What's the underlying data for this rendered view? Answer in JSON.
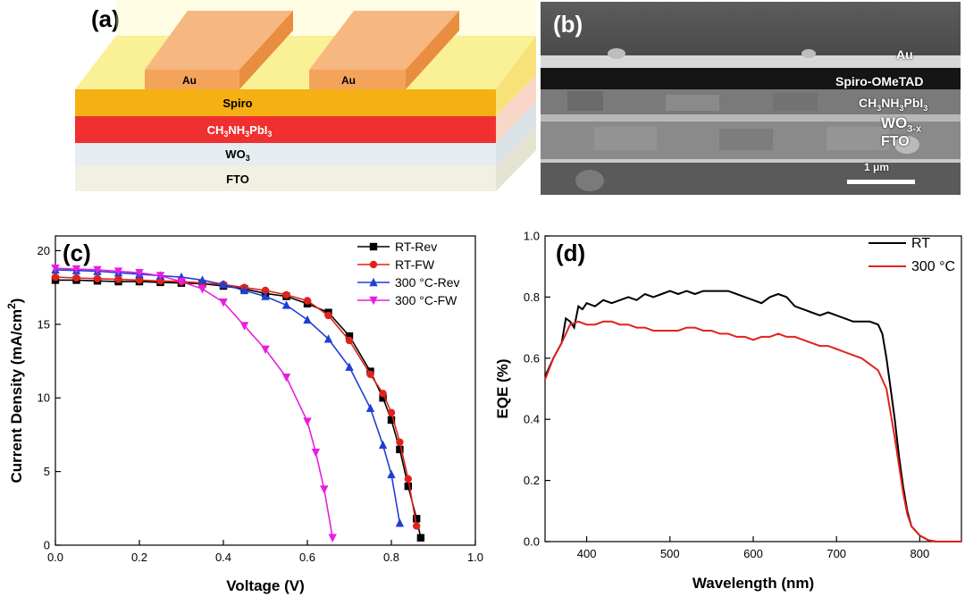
{
  "panel_a": {
    "label": "(a)",
    "layers": {
      "au_left": "Au",
      "au_right": "Au",
      "spiro": "Spiro",
      "perovskite": {
        "main": "CH",
        "s1": "3",
        "mid": "NH",
        "s2": "3",
        "tail": "PbI",
        "s3": "3"
      },
      "wo3": {
        "main": "WO",
        "sub": "3"
      },
      "fto": "FTO"
    },
    "colors": {
      "fto": "#f2f0e2",
      "wo3": "#e6edf0",
      "perovskite": "#f03030",
      "spiro": "#f5b013",
      "au": "#f4a45a",
      "top": "#f7ea70"
    }
  },
  "panel_b": {
    "label": "(b)",
    "layers": {
      "au": "Au",
      "spiro": "Spiro-OMeTAD",
      "perovskite": {
        "main": "CH",
        "s1": "3",
        "mid": "NH",
        "s2": "3",
        "tail": "PbI",
        "s3": "3"
      },
      "wo": {
        "main": "WO",
        "sub": "3-x"
      },
      "fto": "FTO"
    },
    "scale_bar": "1 μm"
  },
  "chart_data": [
    {
      "type": "line",
      "panel": "(c)",
      "xlabel": "Voltage (V)",
      "ylabel": {
        "main": "Current Density (mA/cm",
        "sup": "2",
        "tail": ")"
      },
      "xlim": [
        0.0,
        1.0
      ],
      "ylim": [
        0,
        21
      ],
      "xticks": [
        "0.0",
        "0.2",
        "0.4",
        "0.6",
        "0.8",
        "1.0"
      ],
      "yticks": [
        "0",
        "5",
        "10",
        "15",
        "20"
      ],
      "legend_position": "top-right",
      "series": [
        {
          "name": "RT-Rev",
          "color": "#000000",
          "marker": "square",
          "x": [
            0.0,
            0.05,
            0.1,
            0.15,
            0.2,
            0.25,
            0.3,
            0.35,
            0.4,
            0.45,
            0.5,
            0.55,
            0.6,
            0.65,
            0.7,
            0.75,
            0.78,
            0.8,
            0.82,
            0.84,
            0.86,
            0.87
          ],
          "y": [
            18.0,
            18.0,
            17.95,
            17.9,
            17.9,
            17.85,
            17.8,
            17.75,
            17.6,
            17.4,
            17.1,
            16.9,
            16.4,
            15.8,
            14.2,
            11.8,
            10.0,
            8.5,
            6.5,
            4.0,
            1.8,
            0.5
          ]
        },
        {
          "name": "RT-FW",
          "color": "#e0221c",
          "marker": "circle",
          "x": [
            0.0,
            0.05,
            0.1,
            0.15,
            0.2,
            0.25,
            0.3,
            0.35,
            0.4,
            0.45,
            0.5,
            0.55,
            0.6,
            0.65,
            0.7,
            0.75,
            0.78,
            0.8,
            0.82,
            0.84,
            0.86
          ],
          "y": [
            18.2,
            18.15,
            18.1,
            18.05,
            18.0,
            17.95,
            17.9,
            17.8,
            17.7,
            17.5,
            17.3,
            17.0,
            16.6,
            15.6,
            13.9,
            11.6,
            10.3,
            9.0,
            7.0,
            4.5,
            1.3
          ]
        },
        {
          "name": "300 °C-Rev",
          "color": "#1f3fd4",
          "marker": "triangle-up",
          "x": [
            0.0,
            0.05,
            0.1,
            0.15,
            0.2,
            0.25,
            0.3,
            0.35,
            0.4,
            0.45,
            0.5,
            0.55,
            0.6,
            0.65,
            0.7,
            0.75,
            0.78,
            0.8,
            0.82
          ],
          "y": [
            18.7,
            18.65,
            18.6,
            18.5,
            18.4,
            18.3,
            18.2,
            18.0,
            17.7,
            17.3,
            16.9,
            16.3,
            15.3,
            14.0,
            12.1,
            9.3,
            6.8,
            4.8,
            1.5
          ]
        },
        {
          "name": "300 °C-FW",
          "color": "#e81ee0",
          "marker": "triangle-down",
          "x": [
            0.0,
            0.05,
            0.1,
            0.15,
            0.2,
            0.25,
            0.3,
            0.35,
            0.4,
            0.45,
            0.5,
            0.55,
            0.6,
            0.62,
            0.64,
            0.66
          ],
          "y": [
            18.8,
            18.75,
            18.7,
            18.6,
            18.5,
            18.3,
            17.9,
            17.4,
            16.5,
            14.9,
            13.3,
            11.4,
            8.4,
            6.3,
            3.8,
            0.5
          ]
        }
      ]
    },
    {
      "type": "line",
      "panel": "(d)",
      "xlabel": "Wavelength (nm)",
      "ylabel": "EQE (%)",
      "xlim": [
        350,
        850
      ],
      "ylim": [
        0.0,
        1.0
      ],
      "xticks": [
        "400",
        "500",
        "600",
        "700",
        "800"
      ],
      "yticks": [
        "0.0",
        "0.2",
        "0.4",
        "0.6",
        "0.8",
        "1.0"
      ],
      "legend_position": "top-right",
      "series": [
        {
          "name": "RT",
          "color": "#000000",
          "x": [
            350,
            360,
            370,
            375,
            380,
            385,
            390,
            395,
            400,
            410,
            420,
            430,
            440,
            450,
            460,
            470,
            480,
            490,
            500,
            510,
            520,
            530,
            540,
            550,
            560,
            570,
            580,
            590,
            600,
            610,
            620,
            630,
            640,
            650,
            660,
            670,
            680,
            690,
            700,
            710,
            720,
            730,
            740,
            750,
            755,
            760,
            765,
            770,
            775,
            780,
            785,
            790,
            800,
            810,
            820,
            830,
            850
          ],
          "y": [
            0.54,
            0.6,
            0.65,
            0.73,
            0.72,
            0.7,
            0.77,
            0.76,
            0.78,
            0.77,
            0.79,
            0.78,
            0.79,
            0.8,
            0.79,
            0.81,
            0.8,
            0.81,
            0.82,
            0.81,
            0.82,
            0.81,
            0.82,
            0.82,
            0.82,
            0.82,
            0.81,
            0.8,
            0.79,
            0.78,
            0.8,
            0.81,
            0.8,
            0.77,
            0.76,
            0.75,
            0.74,
            0.75,
            0.74,
            0.73,
            0.72,
            0.72,
            0.72,
            0.71,
            0.68,
            0.6,
            0.5,
            0.4,
            0.28,
            0.18,
            0.1,
            0.05,
            0.02,
            0.005,
            0.0,
            0.0,
            0.0
          ]
        },
        {
          "name": "300 °C",
          "color": "#e0221c",
          "x": [
            350,
            360,
            370,
            380,
            390,
            400,
            410,
            420,
            430,
            440,
            450,
            460,
            470,
            480,
            490,
            500,
            510,
            520,
            530,
            540,
            550,
            560,
            570,
            580,
            590,
            600,
            610,
            620,
            630,
            640,
            650,
            660,
            670,
            680,
            690,
            700,
            710,
            720,
            730,
            740,
            750,
            760,
            765,
            770,
            775,
            780,
            785,
            790,
            800,
            810,
            820,
            830,
            850
          ],
          "y": [
            0.53,
            0.6,
            0.65,
            0.71,
            0.72,
            0.71,
            0.71,
            0.72,
            0.72,
            0.71,
            0.71,
            0.7,
            0.7,
            0.69,
            0.69,
            0.69,
            0.69,
            0.7,
            0.7,
            0.69,
            0.69,
            0.68,
            0.68,
            0.67,
            0.67,
            0.66,
            0.67,
            0.67,
            0.68,
            0.67,
            0.67,
            0.66,
            0.65,
            0.64,
            0.64,
            0.63,
            0.62,
            0.61,
            0.6,
            0.58,
            0.56,
            0.5,
            0.42,
            0.34,
            0.25,
            0.16,
            0.09,
            0.05,
            0.02,
            0.005,
            0.0,
            0.0,
            0.0
          ]
        }
      ]
    }
  ]
}
